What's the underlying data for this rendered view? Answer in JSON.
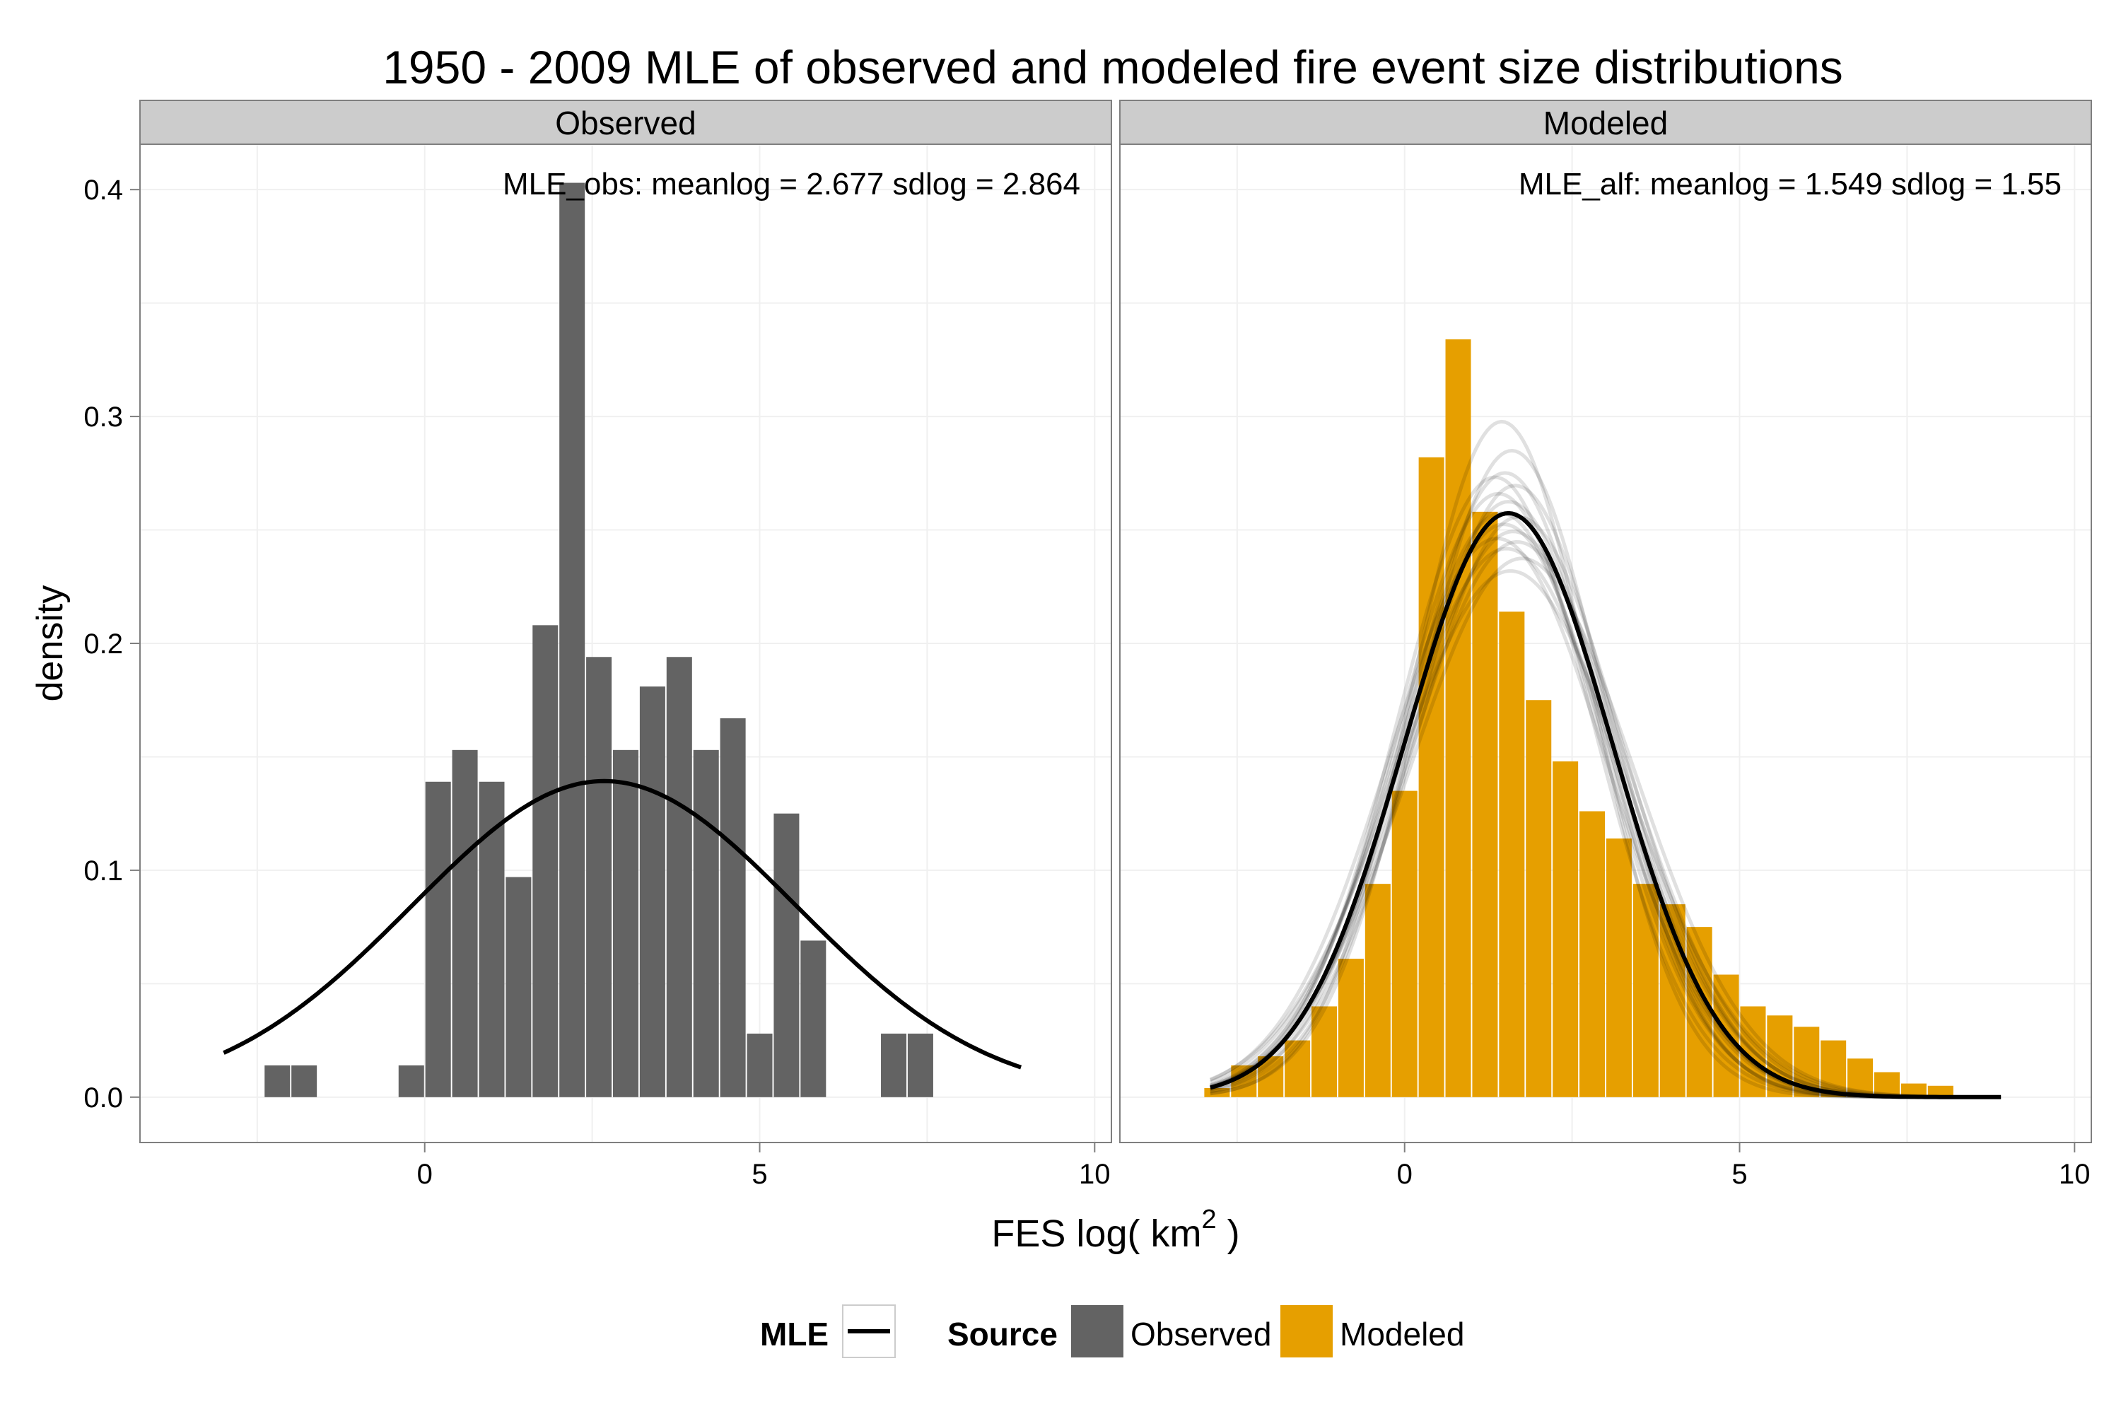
{
  "title": "1950 - 2009 MLE of observed and modeled fire event size distributions",
  "ylabel": "density",
  "xlabel": {
    "main": "FES log( km",
    "sup": "2",
    "tail": " )"
  },
  "colors": {
    "observed": "#636363",
    "modeled": "#E69F00",
    "curve": "#000000",
    "strip": "#cccccc",
    "grid": "#f0f0f0",
    "border": "#7f7f7f"
  },
  "legend": {
    "mle_title": "MLE",
    "source_title": "Source",
    "items": [
      {
        "label": "Observed",
        "color": "#636363"
      },
      {
        "label": "Modeled",
        "color": "#E69F00"
      }
    ],
    "placement": "bottom"
  },
  "chart_data": [
    {
      "type": "bar",
      "panel": "Observed",
      "annotation": "MLE_obs: meanlog = 2.677 sdlog = 2.864",
      "xlim": [
        -4.25,
        10.25
      ],
      "ylim": [
        -0.02,
        0.42
      ],
      "xticks": [
        0,
        5,
        10
      ],
      "yticks": [
        0.0,
        0.1,
        0.2,
        0.3,
        0.4
      ],
      "ytick_labels": [
        "0.0",
        "0.1",
        "0.2",
        "0.3",
        "0.4"
      ],
      "grid": true,
      "bin_width": 0.38,
      "bars": [
        {
          "x": -2.2,
          "y": 0.014
        },
        {
          "x": -1.8,
          "y": 0.014
        },
        {
          "x": -0.2,
          "y": 0.014
        },
        {
          "x": 0.2,
          "y": 0.139
        },
        {
          "x": 0.6,
          "y": 0.153
        },
        {
          "x": 1.0,
          "y": 0.139
        },
        {
          "x": 1.4,
          "y": 0.097
        },
        {
          "x": 1.8,
          "y": 0.208
        },
        {
          "x": 2.2,
          "y": 0.403
        },
        {
          "x": 2.6,
          "y": 0.194
        },
        {
          "x": 3.0,
          "y": 0.153
        },
        {
          "x": 3.4,
          "y": 0.181
        },
        {
          "x": 3.8,
          "y": 0.194
        },
        {
          "x": 4.2,
          "y": 0.153
        },
        {
          "x": 4.6,
          "y": 0.167
        },
        {
          "x": 5.0,
          "y": 0.028
        },
        {
          "x": 5.4,
          "y": 0.125
        },
        {
          "x": 5.8,
          "y": 0.069
        },
        {
          "x": 7.0,
          "y": 0.028
        },
        {
          "x": 7.4,
          "y": 0.028
        }
      ],
      "curve": {
        "meanlog": 2.677,
        "sdlog": 2.864,
        "x_range": [
          -3.0,
          8.9
        ]
      }
    },
    {
      "type": "bar",
      "panel": "Modeled",
      "annotation": "MLE_alf: meanlog = 1.549 sdlog = 1.55",
      "xlim": [
        -4.25,
        10.25
      ],
      "ylim": [
        -0.02,
        0.42
      ],
      "xticks": [
        0,
        5,
        10
      ],
      "yticks": [
        0.0,
        0.1,
        0.2,
        0.3,
        0.4
      ],
      "grid": true,
      "bin_width": 0.38,
      "bars": [
        {
          "x": -2.8,
          "y": 0.004
        },
        {
          "x": -2.4,
          "y": 0.014
        },
        {
          "x": -2.0,
          "y": 0.018
        },
        {
          "x": -1.6,
          "y": 0.025
        },
        {
          "x": -1.2,
          "y": 0.04
        },
        {
          "x": -0.8,
          "y": 0.061
        },
        {
          "x": -0.4,
          "y": 0.094
        },
        {
          "x": 0.0,
          "y": 0.135
        },
        {
          "x": 0.4,
          "y": 0.282
        },
        {
          "x": 0.8,
          "y": 0.334
        },
        {
          "x": 1.2,
          "y": 0.258
        },
        {
          "x": 1.6,
          "y": 0.214
        },
        {
          "x": 2.0,
          "y": 0.175
        },
        {
          "x": 2.4,
          "y": 0.148
        },
        {
          "x": 2.8,
          "y": 0.126
        },
        {
          "x": 3.2,
          "y": 0.114
        },
        {
          "x": 3.6,
          "y": 0.094
        },
        {
          "x": 4.0,
          "y": 0.085
        },
        {
          "x": 4.4,
          "y": 0.075
        },
        {
          "x": 4.8,
          "y": 0.054
        },
        {
          "x": 5.2,
          "y": 0.04
        },
        {
          "x": 5.6,
          "y": 0.036
        },
        {
          "x": 6.0,
          "y": 0.031
        },
        {
          "x": 6.4,
          "y": 0.025
        },
        {
          "x": 6.8,
          "y": 0.017
        },
        {
          "x": 7.2,
          "y": 0.011
        },
        {
          "x": 7.6,
          "y": 0.006
        },
        {
          "x": 8.0,
          "y": 0.005
        }
      ],
      "curve": {
        "meanlog": 1.549,
        "sdlog": 1.55,
        "x_range": [
          -2.9,
          8.9
        ]
      },
      "sample_curves": [
        {
          "meanlog": 1.45,
          "sdlog": 1.34
        },
        {
          "meanlog": 1.6,
          "sdlog": 1.4
        },
        {
          "meanlog": 1.5,
          "sdlog": 1.45
        },
        {
          "meanlog": 1.65,
          "sdlog": 1.48
        },
        {
          "meanlog": 1.4,
          "sdlog": 1.5
        },
        {
          "meanlog": 1.55,
          "sdlog": 1.52
        },
        {
          "meanlog": 1.7,
          "sdlog": 1.56
        },
        {
          "meanlog": 1.48,
          "sdlog": 1.58
        },
        {
          "meanlog": 1.62,
          "sdlog": 1.6
        },
        {
          "meanlog": 1.38,
          "sdlog": 1.62
        },
        {
          "meanlog": 1.52,
          "sdlog": 1.65
        },
        {
          "meanlog": 1.75,
          "sdlog": 1.68
        },
        {
          "meanlog": 1.58,
          "sdlog": 1.72
        },
        {
          "meanlog": 1.44,
          "sdlog": 1.55
        },
        {
          "meanlog": 1.68,
          "sdlog": 1.63
        },
        {
          "meanlog": 1.35,
          "sdlog": 1.46
        }
      ]
    }
  ]
}
